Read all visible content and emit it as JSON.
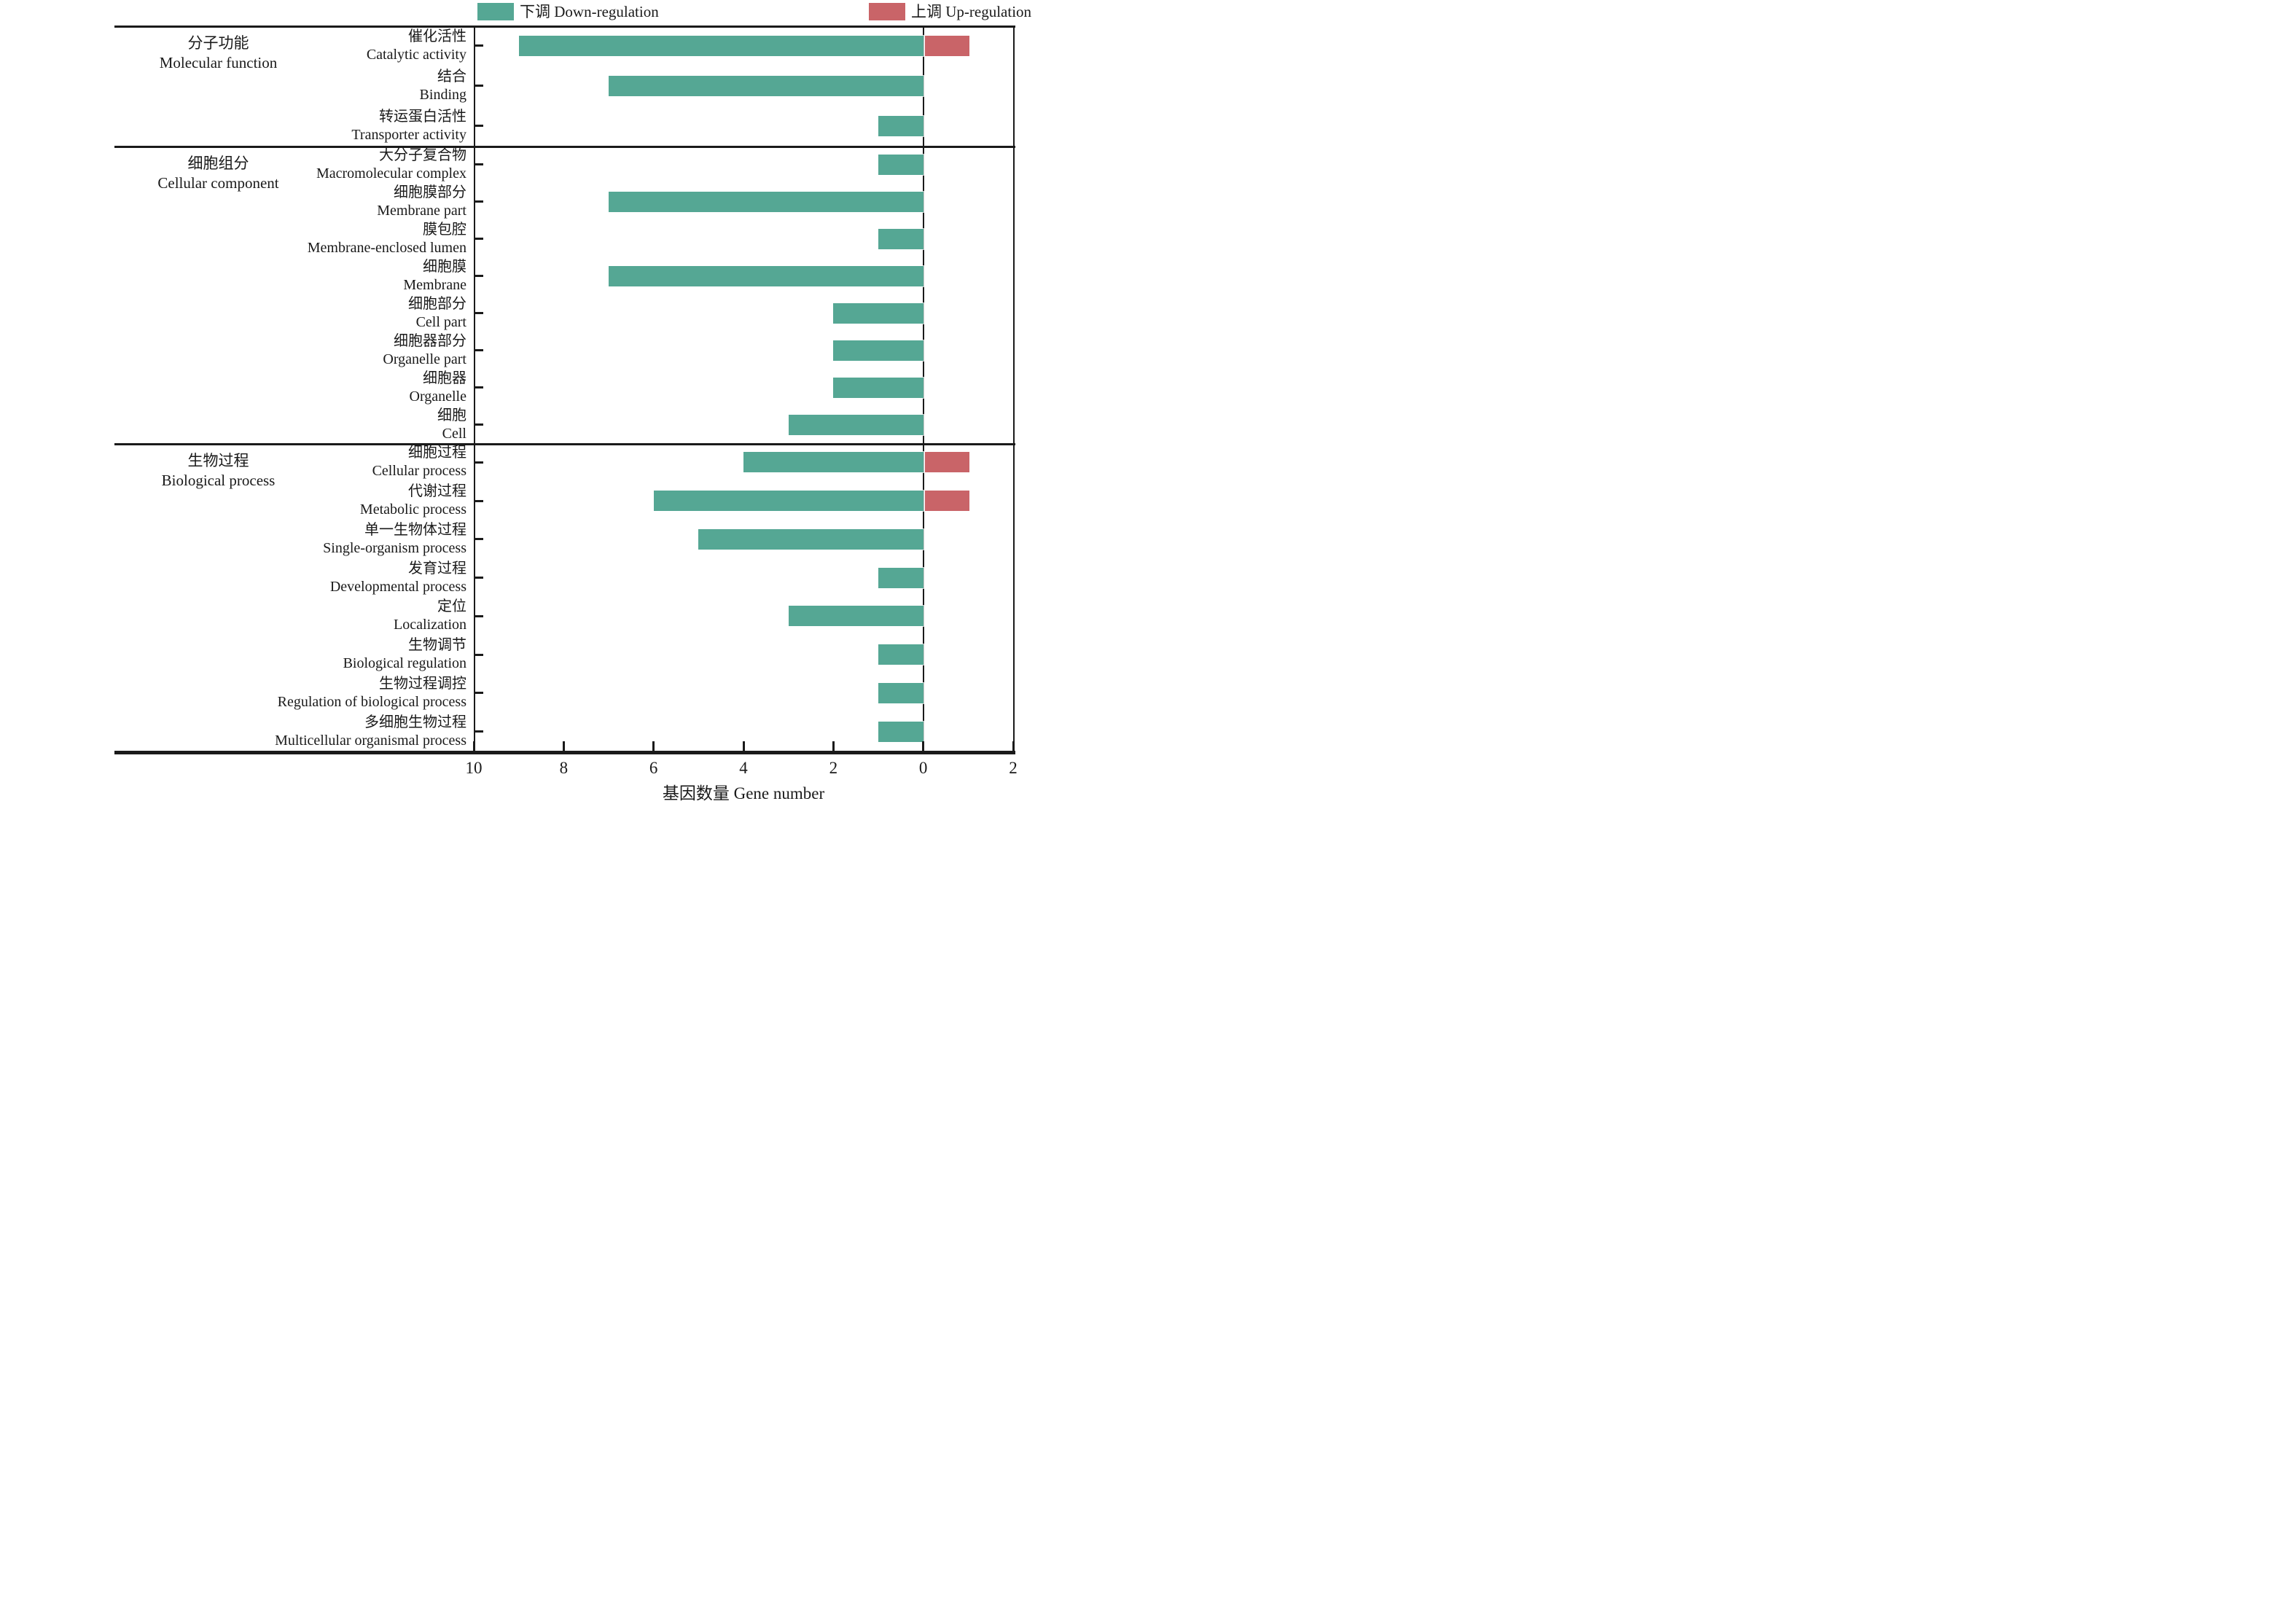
{
  "legend": {
    "down_label": "下调 Down-regulation",
    "up_label": "上调 Up-regulation"
  },
  "colors": {
    "down": "#55a794",
    "up": "#c96468",
    "axis": "#1a1a1a"
  },
  "x_axis": {
    "label": "基因数量 Gene number",
    "tick_labels": [
      "10",
      "8",
      "6",
      "4",
      "2",
      "0",
      "2"
    ],
    "tick_values": [
      10,
      8,
      6,
      4,
      2,
      0,
      -2
    ]
  },
  "chart_data": {
    "type": "bar",
    "orientation": "horizontal-diverging",
    "title": "",
    "xlabel": "基因数量 Gene number",
    "x_range_left_to_right": [
      10,
      -2
    ],
    "grid": false,
    "legend_position": "top",
    "legend": [
      {
        "name": "下调 Down-regulation",
        "color": "#55a794"
      },
      {
        "name": "上调 Up-regulation",
        "color": "#c96468"
      }
    ],
    "groups": [
      {
        "label_zh": "分子功能",
        "label_en": "Molecular function",
        "items": [
          {
            "zh": "催化活性",
            "en": "Catalytic activity",
            "down": 9,
            "up": 1
          },
          {
            "zh": "结合",
            "en": "Binding",
            "down": 7,
            "up": 0
          },
          {
            "zh": "转运蛋白活性",
            "en": "Transporter activity",
            "down": 1,
            "up": 0
          }
        ]
      },
      {
        "label_zh": "细胞组分",
        "label_en": "Cellular component",
        "items": [
          {
            "zh": "大分子复合物",
            "en": "Macromolecular complex",
            "down": 1,
            "up": 0
          },
          {
            "zh": "细胞膜部分",
            "en": "Membrane part",
            "down": 7,
            "up": 0
          },
          {
            "zh": "膜包腔",
            "en": "Membrane-enclosed lumen",
            "down": 1,
            "up": 0
          },
          {
            "zh": "细胞膜",
            "en": "Membrane",
            "down": 7,
            "up": 0
          },
          {
            "zh": "细胞部分",
            "en": "Cell part",
            "down": 2,
            "up": 0
          },
          {
            "zh": "细胞器部分",
            "en": "Organelle part",
            "down": 2,
            "up": 0
          },
          {
            "zh": "细胞器",
            "en": "Organelle",
            "down": 2,
            "up": 0
          },
          {
            "zh": "细胞",
            "en": "Cell",
            "down": 3,
            "up": 0
          }
        ]
      },
      {
        "label_zh": "生物过程",
        "label_en": "Biological process",
        "items": [
          {
            "zh": "细胞过程",
            "en": "Cellular process",
            "down": 4,
            "up": 1
          },
          {
            "zh": "代谢过程",
            "en": "Metabolic process",
            "down": 6,
            "up": 1
          },
          {
            "zh": "单一生物体过程",
            "en": "Single-organism process",
            "down": 5,
            "up": 0
          },
          {
            "zh": "发育过程",
            "en": "Developmental process",
            "down": 1,
            "up": 0
          },
          {
            "zh": "定位",
            "en": "Localization",
            "down": 3,
            "up": 0
          },
          {
            "zh": "生物调节",
            "en": "Biological regulation",
            "down": 1,
            "up": 0
          },
          {
            "zh": "生物过程调控",
            "en": "Regulation of biological process",
            "down": 1,
            "up": 0
          },
          {
            "zh": "多细胞生物过程",
            "en": "Multicellular organismal process",
            "down": 1,
            "up": 0
          }
        ]
      }
    ]
  }
}
